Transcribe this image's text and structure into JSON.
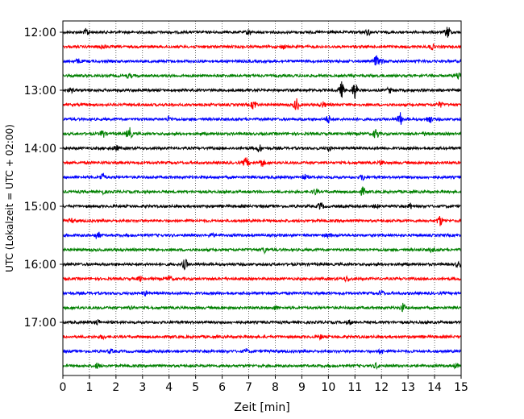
{
  "chart_data": {
    "type": "line",
    "xlabel": "Zeit  [min]",
    "ylabel": "UTC (Lokalzeit = UTC + 02:00)",
    "xlim": [
      0,
      15
    ],
    "x_ticks": [
      0,
      1,
      2,
      3,
      4,
      5,
      6,
      7,
      8,
      9,
      10,
      11,
      12,
      13,
      14,
      15
    ],
    "x_tick_labels": [
      "0",
      "1",
      "2",
      "3",
      "4",
      "5",
      "6",
      "7",
      "8",
      "9",
      "10",
      "11",
      "12",
      "13",
      "14",
      "15"
    ],
    "x_grid": true,
    "y_grid": false,
    "trace_minutes": 15,
    "first_trace": "12:00",
    "last_trace": "17:45",
    "y_tick_labels": [
      "12:00",
      "13:00",
      "14:00",
      "15:00",
      "16:00",
      "17:00"
    ],
    "trace_colors": [
      "#000000",
      "#ff0000",
      "#0000ff",
      "#008000"
    ],
    "traces": [
      {
        "start": "12:00",
        "color": "#000000",
        "bursts": [
          [
            0.9,
            3
          ],
          [
            7.0,
            2
          ],
          [
            11.5,
            2
          ],
          [
            14.5,
            5
          ]
        ]
      },
      {
        "start": "12:15",
        "color": "#ff0000",
        "bursts": [
          [
            1.5,
            2
          ],
          [
            8.3,
            1.5
          ],
          [
            13.9,
            2
          ]
        ]
      },
      {
        "start": "12:30",
        "color": "#0000ff",
        "bursts": [
          [
            0.6,
            1.5
          ],
          [
            11.8,
            4
          ],
          [
            12.0,
            2
          ]
        ]
      },
      {
        "start": "12:45",
        "color": "#008000",
        "bursts": [
          [
            2.5,
            1.5
          ],
          [
            14.9,
            3
          ]
        ]
      },
      {
        "start": "13:00",
        "color": "#000000",
        "bursts": [
          [
            0.3,
            1.5
          ],
          [
            10.5,
            6
          ],
          [
            11.0,
            7
          ],
          [
            12.3,
            2
          ]
        ]
      },
      {
        "start": "13:15",
        "color": "#ff0000",
        "bursts": [
          [
            7.2,
            4
          ],
          [
            8.8,
            5
          ],
          [
            9.8,
            2
          ],
          [
            14.2,
            2
          ]
        ]
      },
      {
        "start": "13:30",
        "color": "#0000ff",
        "bursts": [
          [
            4.0,
            2
          ],
          [
            10.0,
            3
          ],
          [
            12.7,
            5
          ],
          [
            13.8,
            3
          ]
        ]
      },
      {
        "start": "13:45",
        "color": "#008000",
        "bursts": [
          [
            1.5,
            3
          ],
          [
            2.5,
            5
          ],
          [
            11.8,
            4
          ],
          [
            13.7,
            2
          ]
        ]
      },
      {
        "start": "14:00",
        "color": "#000000",
        "bursts": [
          [
            2.0,
            2
          ],
          [
            7.4,
            3
          ],
          [
            10.0,
            2
          ]
        ]
      },
      {
        "start": "14:15",
        "color": "#ff0000",
        "bursts": [
          [
            6.9,
            4
          ],
          [
            7.5,
            3
          ],
          [
            12.0,
            2
          ]
        ]
      },
      {
        "start": "14:30",
        "color": "#0000ff",
        "bursts": [
          [
            1.5,
            3
          ],
          [
            9.1,
            2
          ],
          [
            11.3,
            2
          ]
        ]
      },
      {
        "start": "14:45",
        "color": "#008000",
        "bursts": [
          [
            1.5,
            1.5
          ],
          [
            9.5,
            2
          ],
          [
            11.3,
            3
          ]
        ]
      },
      {
        "start": "15:00",
        "color": "#000000",
        "bursts": [
          [
            9.7,
            3
          ],
          [
            11.8,
            1.5
          ],
          [
            13.1,
            2
          ]
        ]
      },
      {
        "start": "15:15",
        "color": "#ff0000",
        "bursts": [
          [
            0.3,
            1.5
          ],
          [
            14.2,
            4
          ]
        ]
      },
      {
        "start": "15:30",
        "color": "#0000ff",
        "bursts": [
          [
            1.3,
            3
          ],
          [
            5.6,
            1.5
          ],
          [
            10.0,
            1.5
          ]
        ]
      },
      {
        "start": "15:45",
        "color": "#008000",
        "bursts": [
          [
            7.6,
            2
          ],
          [
            13.9,
            1.5
          ]
        ]
      },
      {
        "start": "16:00",
        "color": "#000000",
        "bursts": [
          [
            4.6,
            4
          ],
          [
            14.9,
            2
          ]
        ]
      },
      {
        "start": "16:15",
        "color": "#ff0000",
        "bursts": [
          [
            2.9,
            1.5
          ],
          [
            4.0,
            2
          ],
          [
            10.7,
            2
          ]
        ]
      },
      {
        "start": "16:30",
        "color": "#0000ff",
        "bursts": [
          [
            3.1,
            1.5
          ],
          [
            12.0,
            2
          ]
        ]
      },
      {
        "start": "16:45",
        "color": "#008000",
        "bursts": [
          [
            2.6,
            1.5
          ],
          [
            8.0,
            1.5
          ],
          [
            12.8,
            3
          ]
        ]
      },
      {
        "start": "17:00",
        "color": "#000000",
        "bursts": [
          [
            1.3,
            2
          ],
          [
            10.8,
            1.5
          ]
        ]
      },
      {
        "start": "17:15",
        "color": "#ff0000",
        "bursts": [
          [
            1.5,
            1.5
          ],
          [
            9.7,
            1.5
          ]
        ]
      },
      {
        "start": "17:30",
        "color": "#0000ff",
        "bursts": [
          [
            1.8,
            1.5
          ],
          [
            6.9,
            1.5
          ],
          [
            12.0,
            1.5
          ]
        ]
      },
      {
        "start": "17:45",
        "color": "#008000",
        "bursts": [
          [
            1.3,
            2
          ],
          [
            11.8,
            2
          ],
          [
            14.8,
            1.5
          ]
        ]
      }
    ]
  }
}
